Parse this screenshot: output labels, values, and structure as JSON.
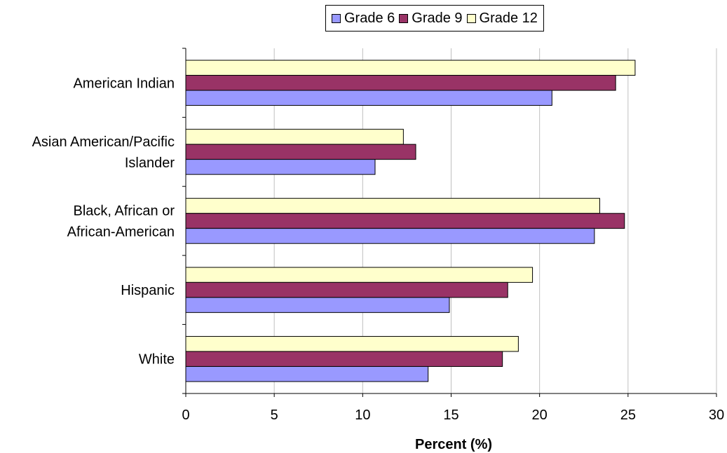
{
  "chart_data": {
    "type": "bar",
    "orientation": "horizontal",
    "title": "",
    "xlabel": "Percent (%)",
    "ylabel": "",
    "xlim": [
      0,
      30
    ],
    "xticks": [
      "0",
      "5",
      "10",
      "15",
      "20",
      "25",
      "30"
    ],
    "grid": "vertical",
    "legend_position": "top",
    "categories": [
      [
        "American Indian"
      ],
      [
        "Asian American/Pacific",
        "Islander"
      ],
      [
        "Black, African or",
        "African-American"
      ],
      [
        "Hispanic"
      ],
      [
        "White"
      ]
    ],
    "series": [
      {
        "name": "Grade 6",
        "color": "#9999FF",
        "values": [
          20.7,
          10.7,
          23.1,
          14.9,
          13.7
        ]
      },
      {
        "name": "Grade 9",
        "color": "#993366",
        "values": [
          24.3,
          13.0,
          24.8,
          18.2,
          17.9
        ]
      },
      {
        "name": "Grade 12",
        "color": "#FFFFCC",
        "values": [
          25.4,
          12.3,
          23.4,
          19.6,
          18.8
        ]
      }
    ]
  }
}
